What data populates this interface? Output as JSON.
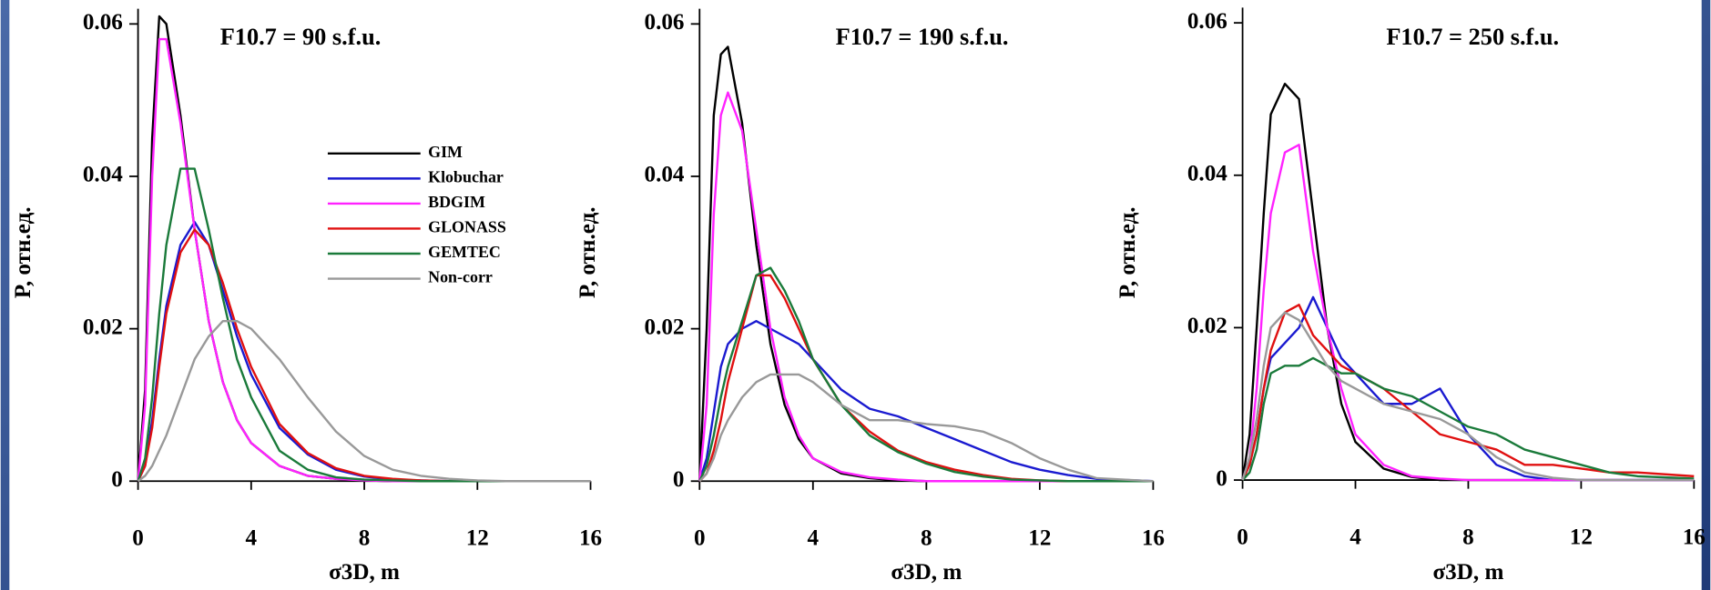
{
  "chart_data": [
    {
      "type": "line",
      "title": "F10.7 = 90 s.f.u.",
      "x_label": "σ3D, m",
      "y_label": "P, отн.ед.",
      "xlim": [
        0,
        16
      ],
      "xticks": [
        0,
        4,
        8,
        12,
        16
      ],
      "ylim": [
        0,
        0.062
      ],
      "yticks": [
        0,
        0.02,
        0.04,
        0.06
      ],
      "legend": "center right",
      "x": [
        0,
        0.25,
        0.5,
        0.75,
        1,
        1.5,
        2,
        2.5,
        3,
        3.5,
        4,
        5,
        6,
        7,
        8,
        9,
        10,
        11,
        12,
        13,
        14,
        16
      ],
      "series": [
        {
          "name": "GIM",
          "color": "#000000",
          "values": [
            0,
            0.012,
            0.045,
            0.061,
            0.06,
            0.048,
            0.033,
            0.021,
            0.013,
            0.008,
            0.005,
            0.002,
            0.0007,
            0.0003,
            0.0001,
            0,
            0,
            0,
            0,
            0,
            0,
            0
          ]
        },
        {
          "name": "Klobuchar",
          "color": "#1a1ad0",
          "values": [
            0,
            0.002,
            0.008,
            0.016,
            0.023,
            0.031,
            0.034,
            0.031,
            0.025,
            0.019,
            0.014,
            0.007,
            0.0035,
            0.0015,
            0.0006,
            0.0002,
            0.0001,
            0,
            0,
            0,
            0,
            0
          ]
        },
        {
          "name": "BDGIM",
          "color": "#ff22ff",
          "values": [
            0,
            0.01,
            0.04,
            0.058,
            0.058,
            0.047,
            0.033,
            0.021,
            0.013,
            0.008,
            0.005,
            0.002,
            0.0007,
            0.0003,
            0.0001,
            0,
            0,
            0,
            0,
            0,
            0,
            0
          ]
        },
        {
          "name": "GLONASS",
          "color": "#e01010",
          "values": [
            0,
            0.002,
            0.007,
            0.015,
            0.022,
            0.03,
            0.033,
            0.031,
            0.026,
            0.02,
            0.015,
            0.0075,
            0.0037,
            0.0017,
            0.0007,
            0.0003,
            0.0001,
            0,
            0,
            0,
            0,
            0
          ]
        },
        {
          "name": "GEMTEC",
          "color": "#1a7a3a",
          "values": [
            0,
            0.003,
            0.011,
            0.022,
            0.031,
            0.041,
            0.041,
            0.033,
            0.024,
            0.016,
            0.011,
            0.004,
            0.0015,
            0.0005,
            0.0002,
            0.0001,
            0,
            0,
            0,
            0,
            0,
            0
          ]
        },
        {
          "name": "Non-corr",
          "color": "#999999",
          "values": [
            0,
            0.0007,
            0.002,
            0.004,
            0.006,
            0.011,
            0.016,
            0.019,
            0.021,
            0.021,
            0.02,
            0.016,
            0.011,
            0.0065,
            0.0033,
            0.0015,
            0.0007,
            0.0003,
            0.0001,
            0,
            0,
            0
          ]
        }
      ]
    },
    {
      "type": "line",
      "title": "F10.7 = 190 s.f.u.",
      "x_label": "σ3D, m",
      "y_label": "P, отн.ед.",
      "xlim": [
        0,
        16
      ],
      "xticks": [
        0,
        4,
        8,
        12,
        16
      ],
      "ylim": [
        0,
        0.062
      ],
      "yticks": [
        0,
        0.02,
        0.04,
        0.06
      ],
      "x": [
        0,
        0.25,
        0.5,
        0.75,
        1,
        1.5,
        2,
        2.5,
        3,
        3.5,
        4,
        5,
        6,
        7,
        8,
        9,
        10,
        11,
        12,
        13,
        14,
        16
      ],
      "series": [
        {
          "name": "GIM",
          "color": "#000000",
          "values": [
            0,
            0.02,
            0.048,
            0.056,
            0.057,
            0.047,
            0.031,
            0.018,
            0.01,
            0.0055,
            0.003,
            0.001,
            0.0004,
            0.0001,
            0,
            0,
            0,
            0,
            0,
            0,
            0,
            0
          ]
        },
        {
          "name": "Klobuchar",
          "color": "#1a1ad0",
          "values": [
            0,
            0.003,
            0.009,
            0.015,
            0.018,
            0.02,
            0.021,
            0.02,
            0.019,
            0.018,
            0.016,
            0.012,
            0.0095,
            0.0085,
            0.007,
            0.0055,
            0.004,
            0.0025,
            0.0015,
            0.0008,
            0.0003,
            0
          ]
        },
        {
          "name": "BDGIM",
          "color": "#ff22ff",
          "values": [
            0,
            0.01,
            0.035,
            0.048,
            0.051,
            0.046,
            0.033,
            0.02,
            0.011,
            0.006,
            0.003,
            0.0012,
            0.0005,
            0.0002,
            0,
            0,
            0,
            0,
            0,
            0,
            0,
            0
          ]
        },
        {
          "name": "GLONASS",
          "color": "#e01010",
          "values": [
            0,
            0.001,
            0.004,
            0.008,
            0.013,
            0.02,
            0.027,
            0.027,
            0.024,
            0.02,
            0.016,
            0.01,
            0.0065,
            0.004,
            0.0025,
            0.0015,
            0.0008,
            0.0003,
            0.0001,
            0,
            0,
            0
          ]
        },
        {
          "name": "GEMTEC",
          "color": "#1a7a3a",
          "values": [
            0,
            0.002,
            0.006,
            0.011,
            0.015,
            0.021,
            0.027,
            0.028,
            0.025,
            0.021,
            0.016,
            0.01,
            0.006,
            0.0038,
            0.0023,
            0.0012,
            0.0006,
            0.0002,
            0.0001,
            0,
            0,
            0
          ]
        },
        {
          "name": "Non-corr",
          "color": "#999999",
          "values": [
            0,
            0.001,
            0.003,
            0.006,
            0.008,
            0.011,
            0.013,
            0.014,
            0.014,
            0.014,
            0.013,
            0.01,
            0.008,
            0.008,
            0.0075,
            0.0072,
            0.0065,
            0.005,
            0.003,
            0.0015,
            0.0004,
            0
          ]
        }
      ]
    },
    {
      "type": "line",
      "title": "F10.7 = 250 s.f.u.",
      "x_label": "σ3D, m",
      "y_label": "P, отн.ед.",
      "xlim": [
        0,
        16
      ],
      "xticks": [
        0,
        4,
        8,
        12,
        16
      ],
      "ylim": [
        0,
        0.062
      ],
      "yticks": [
        0,
        0.02,
        0.04,
        0.06
      ],
      "x": [
        0,
        0.25,
        0.5,
        0.75,
        1,
        1.5,
        2,
        2.5,
        3,
        3.5,
        4,
        5,
        6,
        7,
        8,
        9,
        10,
        11,
        12,
        13,
        14,
        16
      ],
      "series": [
        {
          "name": "GIM",
          "color": "#000000",
          "values": [
            0,
            0.006,
            0.02,
            0.035,
            0.048,
            0.052,
            0.05,
            0.035,
            0.02,
            0.01,
            0.005,
            0.0015,
            0.0004,
            0,
            0,
            0,
            0,
            0,
            0,
            0,
            0,
            0
          ]
        },
        {
          "name": "Klobuchar",
          "color": "#1a1ad0",
          "values": [
            0,
            0.002,
            0.006,
            0.012,
            0.016,
            0.018,
            0.02,
            0.024,
            0.02,
            0.016,
            0.014,
            0.01,
            0.01,
            0.012,
            0.006,
            0.002,
            0.0005,
            0,
            0,
            0,
            0,
            0
          ]
        },
        {
          "name": "BDGIM",
          "color": "#ff22ff",
          "values": [
            0,
            0.003,
            0.012,
            0.025,
            0.035,
            0.043,
            0.044,
            0.03,
            0.02,
            0.012,
            0.006,
            0.002,
            0.0005,
            0.0002,
            0,
            0,
            0,
            0,
            0,
            0,
            0,
            0
          ]
        },
        {
          "name": "GLONASS",
          "color": "#e01010",
          "values": [
            0,
            0.002,
            0.006,
            0.012,
            0.017,
            0.022,
            0.023,
            0.019,
            0.017,
            0.015,
            0.014,
            0.012,
            0.009,
            0.006,
            0.005,
            0.004,
            0.002,
            0.002,
            0.0015,
            0.001,
            0.001,
            0.0005
          ]
        },
        {
          "name": "GEMTEC",
          "color": "#1a7a3a",
          "values": [
            0,
            0.001,
            0.004,
            0.01,
            0.014,
            0.015,
            0.015,
            0.016,
            0.015,
            0.014,
            0.014,
            0.012,
            0.011,
            0.009,
            0.007,
            0.006,
            0.004,
            0.003,
            0.002,
            0.001,
            0.0005,
            0.0002
          ]
        },
        {
          "name": "Non-corr",
          "color": "#999999",
          "values": [
            0,
            0.003,
            0.008,
            0.015,
            0.02,
            0.022,
            0.021,
            0.018,
            0.015,
            0.013,
            0.012,
            0.01,
            0.009,
            0.008,
            0.006,
            0.003,
            0.001,
            0.0003,
            0,
            0,
            0,
            0
          ]
        }
      ]
    }
  ]
}
